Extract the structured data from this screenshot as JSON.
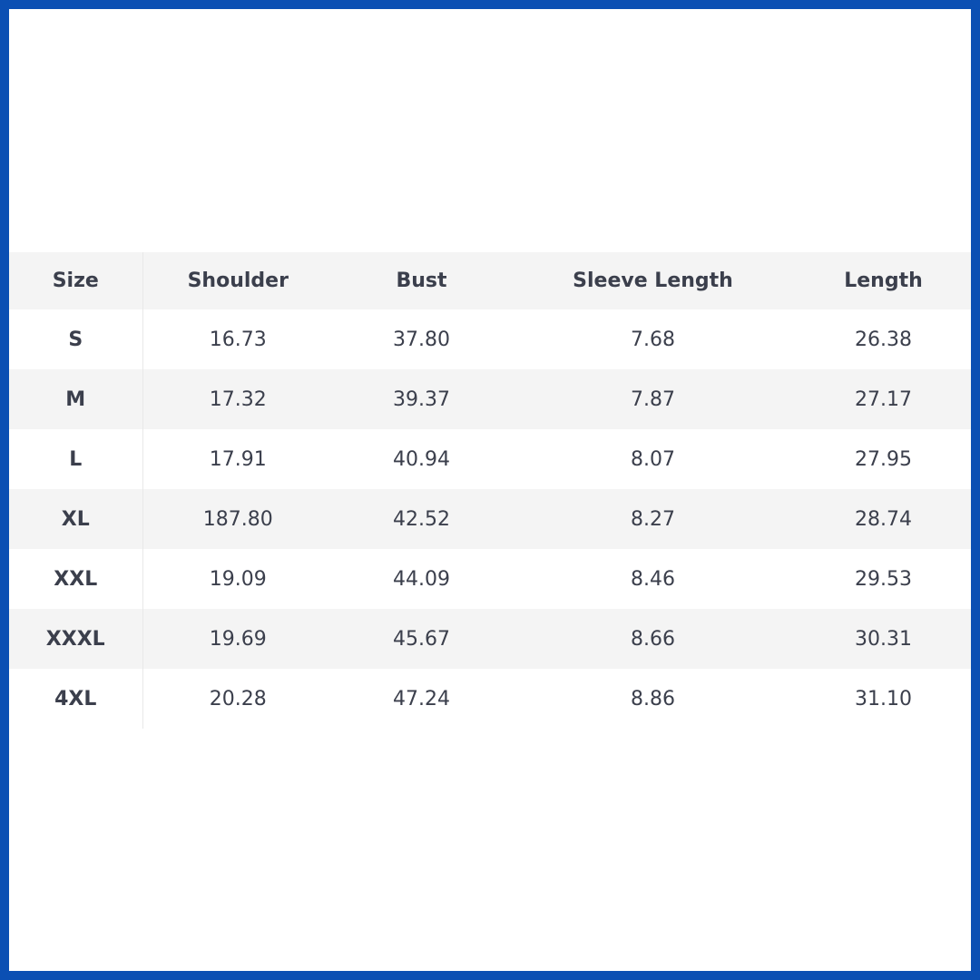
{
  "table": {
    "header": [
      "Size",
      "Shoulder",
      "Bust",
      "Sleeve Length",
      "Length"
    ],
    "rows": [
      [
        "S",
        "16.73",
        "37.80",
        "7.68",
        "26.38"
      ],
      [
        "M",
        "17.32",
        "39.37",
        "7.87",
        "27.17"
      ],
      [
        "L",
        "17.91",
        "40.94",
        "8.07",
        "27.95"
      ],
      [
        "XL",
        "187.80",
        "42.52",
        "8.27",
        "28.74"
      ],
      [
        "XXL",
        "19.09",
        "44.09",
        "8.46",
        "29.53"
      ],
      [
        "XXXL",
        "19.69",
        "45.67",
        "8.66",
        "30.31"
      ],
      [
        "4XL",
        "20.28",
        "47.24",
        "8.86",
        "31.10"
      ]
    ]
  }
}
